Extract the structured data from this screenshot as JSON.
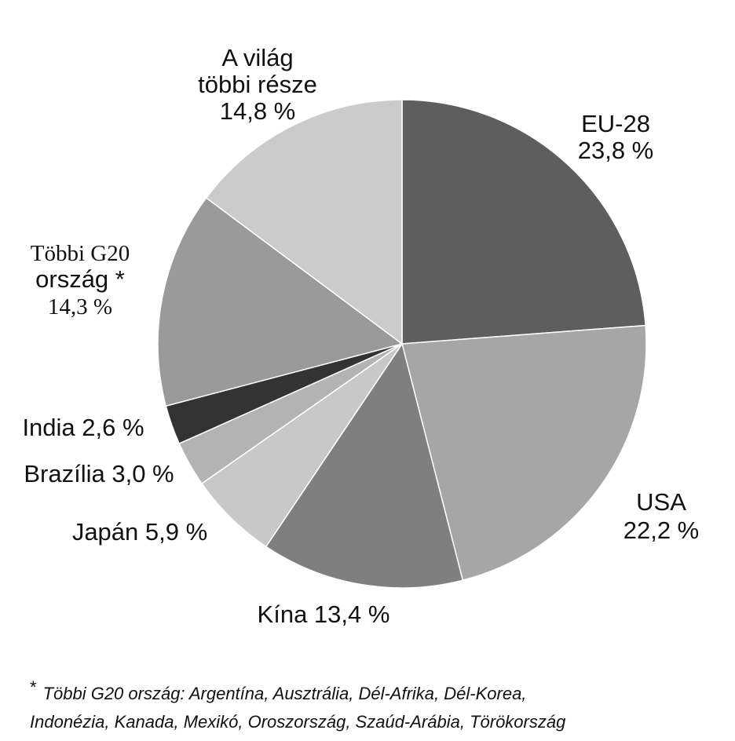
{
  "chart_data": {
    "type": "pie",
    "start_angle_deg": 0,
    "direction": "clockwise",
    "slices": [
      {
        "label_lines": [
          "EU-28",
          "23,8 %"
        ],
        "value": 23.8,
        "color": "#5e5e5e"
      },
      {
        "label_lines": [
          "USA",
          "22,2 %"
        ],
        "value": 22.2,
        "color": "#a6a6a6"
      },
      {
        "label_lines": [
          "Kína 13,4 %"
        ],
        "value": 13.4,
        "color": "#7f7f7f"
      },
      {
        "label_lines": [
          "Japán 5,9 %"
        ],
        "value": 5.9,
        "color": "#c8c8c8"
      },
      {
        "label_lines": [
          "Brazília 3,0 %"
        ],
        "value": 3.0,
        "color": "#b3b3b3"
      },
      {
        "label_lines": [
          "India 2,6 %"
        ],
        "value": 2.6,
        "color": "#333333"
      },
      {
        "label_lines": [
          "Többi G20",
          "ország *",
          "14,3 %"
        ],
        "value": 14.3,
        "color": "#9a9a9a"
      },
      {
        "label_lines": [
          "A világ",
          "többi része",
          "14,8 %"
        ],
        "value": 14.8,
        "color": "#cbcbcb"
      }
    ]
  },
  "footnote": {
    "marker": "*",
    "line1": "Többi G20 ország: Argentína, Ausztrália, Dél-Afrika, Dél-Korea,",
    "line2": "Indonézia, Kanada, Mexikó, Oroszország, Szaúd-Arábia, Törökország"
  }
}
